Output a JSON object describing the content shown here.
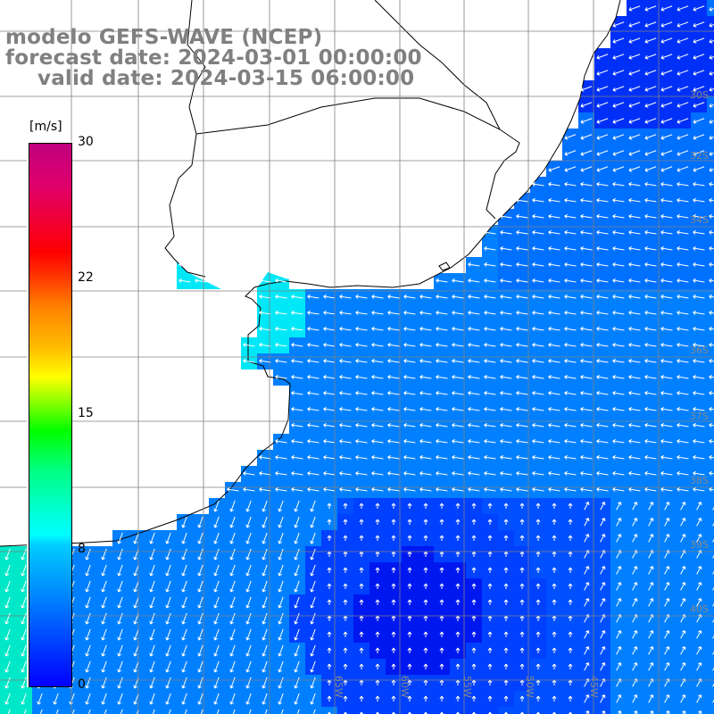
{
  "title": {
    "line1": "modelo GEFS-WAVE (NCEP)",
    "line2": "forecast date: 2024-03-01 00:00:00",
    "line3": "valid date: 2024-03-15 06:00:00"
  },
  "colorbar": {
    "unit": "[m/s]",
    "min": 0,
    "max": 30,
    "ticks": [
      "30",
      "22",
      "15",
      "8",
      "0"
    ],
    "tick_values": [
      30,
      22,
      15,
      8,
      0
    ]
  },
  "colors": {
    "land": "#ffffff",
    "coast": "#000000",
    "grid": "#808080",
    "arrow": "#ffffff",
    "deep_blue": "#0010f0",
    "mid_blue": "#0078ff",
    "cyan": "#00ffff"
  },
  "axis_labels": {
    "lat": [
      "30S",
      "32S",
      "34S",
      "36S",
      "37S",
      "38S",
      "39S",
      "40S"
    ],
    "lon": [
      "65W",
      "60W",
      "55W",
      "50W",
      "45W"
    ]
  }
}
